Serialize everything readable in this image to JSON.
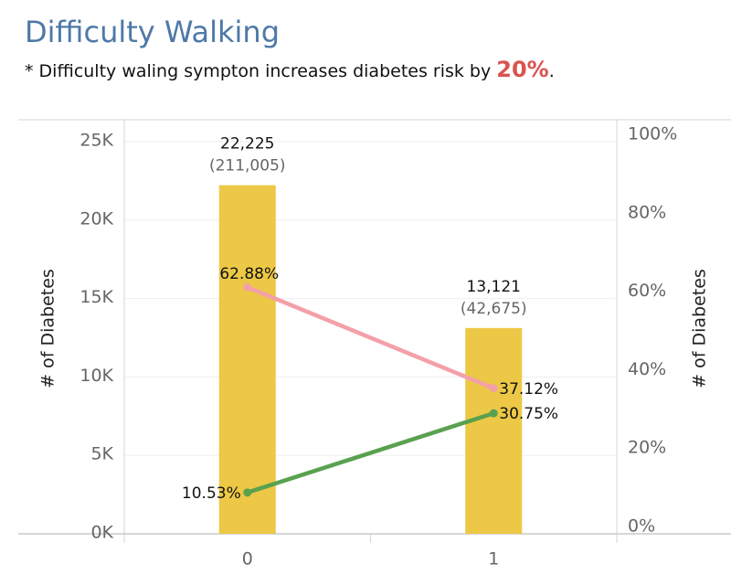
{
  "header": {
    "title": "Difficulty Walking",
    "subtitle_prefix": "* Difficulty waling sympton increases diabetes risk by ",
    "subtitle_highlight": "20%",
    "subtitle_suffix": "."
  },
  "colors": {
    "bar": "#ecc846",
    "pink_line": "#f4a0a8",
    "green_line": "#59a14f",
    "title": "#4e79a7",
    "highlight": "#d9534f"
  },
  "chart_data": {
    "type": "bar",
    "categories": [
      "0",
      "1"
    ],
    "bars": {
      "values": [
        22225,
        13121
      ],
      "labels": [
        "22,225",
        "13,121"
      ],
      "sublabels": [
        "(211,005)",
        "(42,675)"
      ]
    },
    "lines": [
      {
        "values": [
          62.88,
          37.12
        ],
        "labels": [
          "62.88%",
          "37.12%"
        ]
      },
      {
        "values": [
          10.53,
          30.75
        ],
        "labels": [
          "10.53%",
          "30.75%"
        ]
      }
    ],
    "ylabel_left": "# of Diabetes",
    "ylabel_right": "# of Diabetes",
    "ylim_left": [
      0,
      25000
    ],
    "ylim_right": [
      0,
      100
    ],
    "yticks_left": [
      {
        "value": 0,
        "label": "0K"
      },
      {
        "value": 5000,
        "label": "5K"
      },
      {
        "value": 10000,
        "label": "10K"
      },
      {
        "value": 15000,
        "label": "15K"
      },
      {
        "value": 20000,
        "label": "20K"
      },
      {
        "value": 25000,
        "label": "25K"
      }
    ],
    "yticks_right": [
      {
        "value": 0,
        "label": "0%"
      },
      {
        "value": 20,
        "label": "20%"
      },
      {
        "value": 40,
        "label": "40%"
      },
      {
        "value": 60,
        "label": "60%"
      },
      {
        "value": 80,
        "label": "80%"
      },
      {
        "value": 100,
        "label": "100%"
      }
    ],
    "grid": true
  }
}
